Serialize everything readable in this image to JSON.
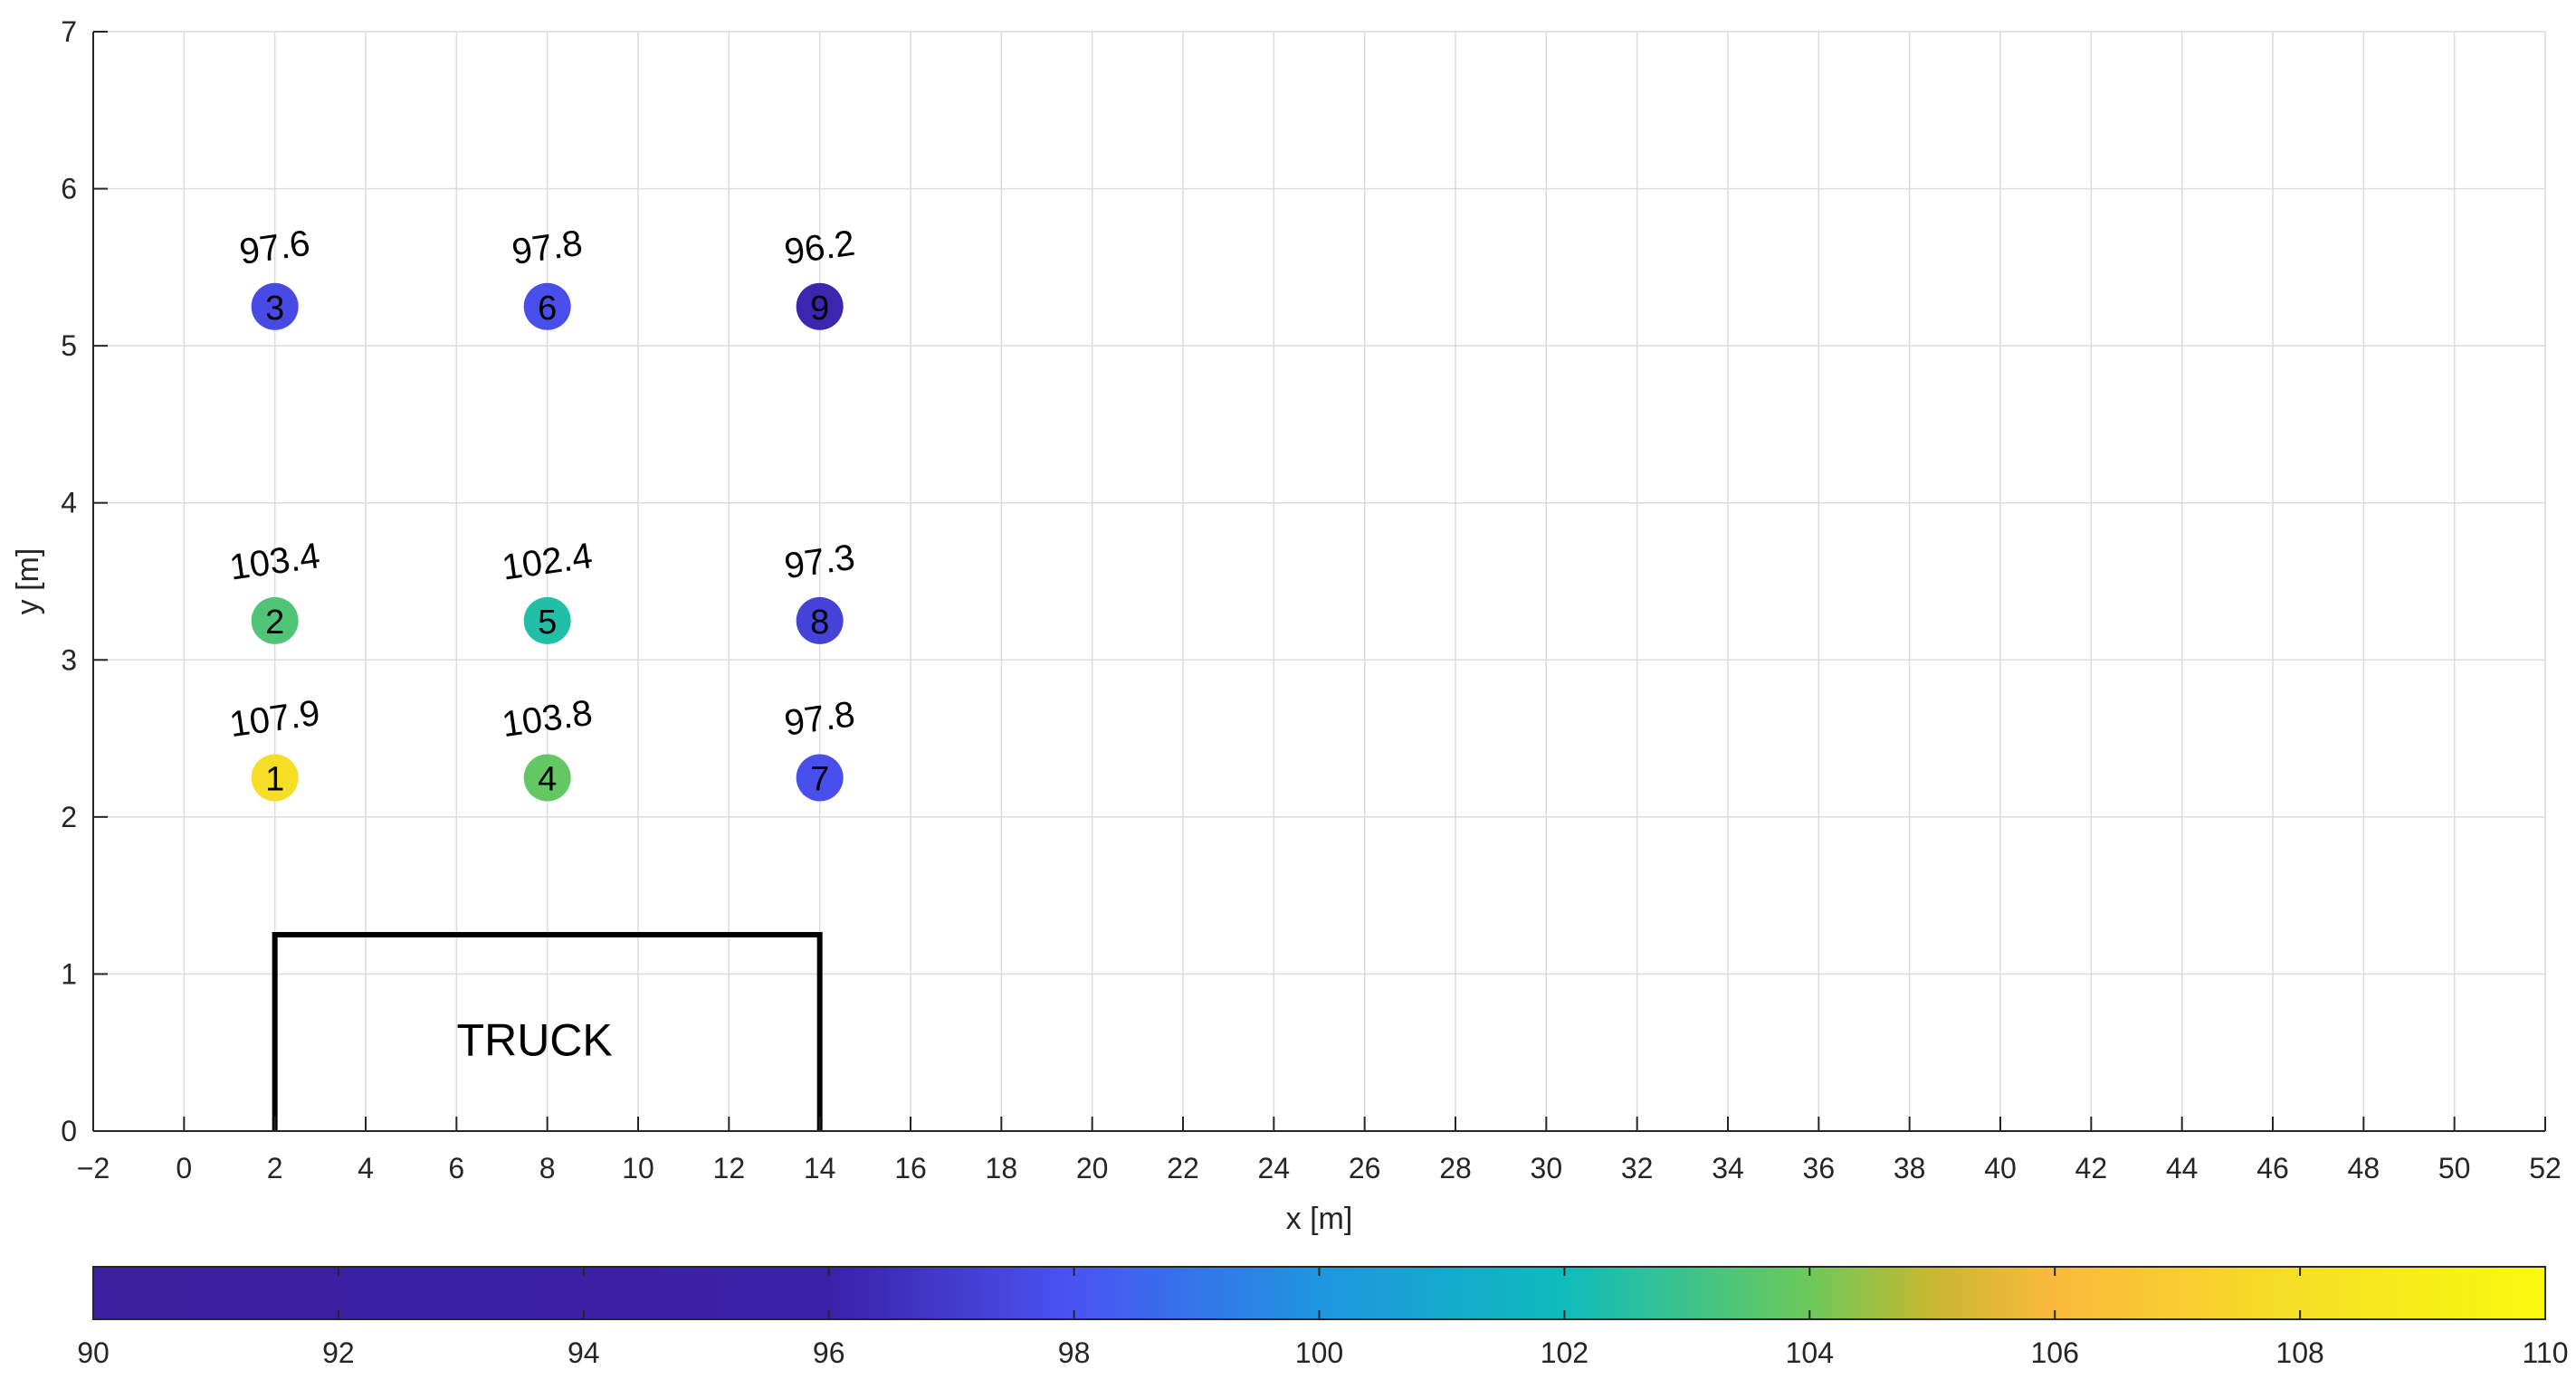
{
  "chart_data": {
    "type": "scatter",
    "title": "",
    "xlabel": "x [m]",
    "ylabel": "y [m]",
    "xlim": [
      -2,
      52
    ],
    "ylim": [
      0,
      7
    ],
    "xticks": [
      -2,
      0,
      2,
      4,
      6,
      8,
      10,
      12,
      14,
      16,
      18,
      20,
      22,
      24,
      26,
      28,
      30,
      32,
      34,
      36,
      38,
      40,
      42,
      44,
      46,
      48,
      50,
      52
    ],
    "yticks": [
      0,
      1,
      2,
      3,
      4,
      5,
      6,
      7
    ],
    "xtick_labels": [
      "−2",
      "0",
      "2",
      "4",
      "6",
      "8",
      "10",
      "12",
      "14",
      "16",
      "18",
      "20",
      "22",
      "24",
      "26",
      "28",
      "30",
      "32",
      "34",
      "36",
      "38",
      "40",
      "42",
      "44",
      "46",
      "48",
      "50",
      "52"
    ],
    "ytick_labels": [
      "0",
      "1",
      "2",
      "3",
      "4",
      "5",
      "6",
      "7"
    ],
    "grid": true,
    "points": [
      {
        "id": "1",
        "x": 2,
        "y": 2.25,
        "value": 107.9,
        "label": "107.9"
      },
      {
        "id": "2",
        "x": 2,
        "y": 3.25,
        "value": 103.4,
        "label": "103.4"
      },
      {
        "id": "3",
        "x": 2,
        "y": 5.25,
        "value": 97.6,
        "label": "97.6"
      },
      {
        "id": "4",
        "x": 8,
        "y": 2.25,
        "value": 103.8,
        "label": "103.8"
      },
      {
        "id": "5",
        "x": 8,
        "y": 3.25,
        "value": 102.4,
        "label": "102.4"
      },
      {
        "id": "6",
        "x": 8,
        "y": 5.25,
        "value": 97.8,
        "label": "97.8"
      },
      {
        "id": "7",
        "x": 14,
        "y": 2.25,
        "value": 97.8,
        "label": "97.8"
      },
      {
        "id": "8",
        "x": 14,
        "y": 3.25,
        "value": 97.3,
        "label": "97.3"
      },
      {
        "id": "9",
        "x": 14,
        "y": 5.25,
        "value": 96.2,
        "label": "96.2"
      }
    ],
    "truck": {
      "label": "TRUCK",
      "x_range": [
        2,
        14
      ],
      "y_range": [
        0,
        1.25
      ]
    },
    "colorbar": {
      "min": 90,
      "max": 110,
      "ticks": [
        90,
        92,
        94,
        96,
        98,
        100,
        102,
        104,
        106,
        108,
        110
      ],
      "tick_labels": [
        "90",
        "92",
        "94",
        "96",
        "98",
        "100",
        "102",
        "104",
        "106",
        "108",
        "110"
      ],
      "location": "bottom",
      "stops": [
        {
          "value": 90,
          "color": "#3a1f9e"
        },
        {
          "value": 96,
          "color": "#3b21a8"
        },
        {
          "value": 98,
          "color": "#4a54f2"
        },
        {
          "value": 100,
          "color": "#1e96e0"
        },
        {
          "value": 102,
          "color": "#0ebcbc"
        },
        {
          "value": 104,
          "color": "#6cc95a"
        },
        {
          "value": 105,
          "color": "#c8b830"
        },
        {
          "value": 106,
          "color": "#fbb93c"
        },
        {
          "value": 108,
          "color": "#f6e025"
        },
        {
          "value": 110,
          "color": "#f8fa0d"
        }
      ]
    }
  }
}
